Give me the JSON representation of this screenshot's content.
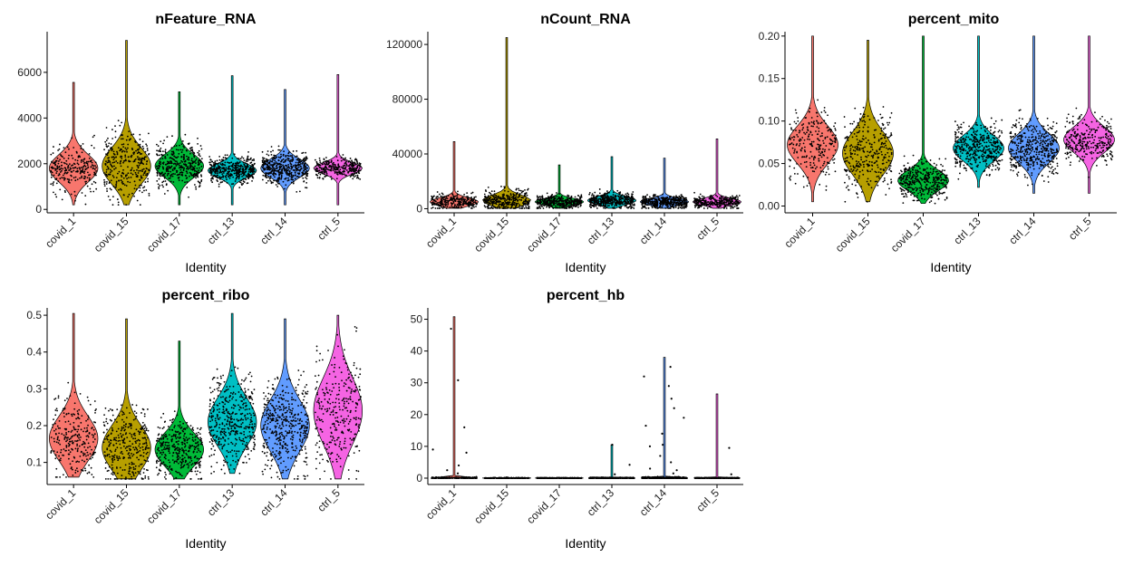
{
  "figure": {
    "identities": [
      "covid_1",
      "covid_15",
      "covid_17",
      "ctrl_13",
      "ctrl_14",
      "ctrl_5"
    ]
  },
  "chart_data": [
    {
      "type": "violin",
      "title": "nFeature_RNA",
      "xlabel": "Identity",
      "ylabel": "",
      "categories": [
        "covid_1",
        "covid_15",
        "covid_17",
        "ctrl_13",
        "ctrl_14",
        "ctrl_5"
      ],
      "colors": [
        "#F8766D",
        "#B79F00",
        "#00BA38",
        "#00BFC4",
        "#619CFF",
        "#F564E3"
      ],
      "ylim": [
        -150,
        7700
      ],
      "yticks": [
        0,
        2000,
        4000,
        6000
      ],
      "ytick_labels": [
        "0",
        "2000",
        "4000",
        "6000"
      ],
      "ranges": [
        [
          200,
          5560
        ],
        [
          200,
          7400
        ],
        [
          200,
          5150
        ],
        [
          200,
          5850
        ],
        [
          200,
          5250
        ],
        [
          200,
          5900
        ]
      ],
      "modes": [
        1800,
        1900,
        1900,
        1700,
        1800,
        1800
      ],
      "spreads": [
        600,
        800,
        500,
        300,
        400,
        250
      ],
      "point_counts": [
        260,
        330,
        380,
        430,
        440,
        300
      ]
    },
    {
      "type": "violin",
      "title": "nCount_RNA",
      "xlabel": "Identity",
      "ylabel": "",
      "categories": [
        "covid_1",
        "covid_15",
        "covid_17",
        "ctrl_13",
        "ctrl_14",
        "ctrl_5"
      ],
      "colors": [
        "#F8766D",
        "#B79F00",
        "#00BA38",
        "#00BFC4",
        "#619CFF",
        "#F564E3"
      ],
      "ylim": [
        -3000,
        128000
      ],
      "yticks": [
        0,
        40000,
        80000,
        120000
      ],
      "ytick_labels": [
        "0",
        "40000",
        "80000",
        "120000"
      ],
      "ranges": [
        [
          300,
          49000
        ],
        [
          300,
          125000
        ],
        [
          300,
          32000
        ],
        [
          300,
          38000
        ],
        [
          300,
          37000
        ],
        [
          300,
          51000
        ]
      ],
      "modes": [
        5000,
        6000,
        5000,
        6000,
        5000,
        5000
      ],
      "spreads": [
        3000,
        4000,
        2500,
        3000,
        2500,
        2500
      ],
      "point_counts": [
        260,
        330,
        380,
        430,
        440,
        300
      ]
    },
    {
      "type": "violin",
      "title": "percent_mito",
      "xlabel": "Identity",
      "ylabel": "",
      "categories": [
        "covid_1",
        "covid_15",
        "covid_17",
        "ctrl_13",
        "ctrl_14",
        "ctrl_5"
      ],
      "colors": [
        "#F8766D",
        "#B79F00",
        "#00BA38",
        "#00BFC4",
        "#619CFF",
        "#F564E3"
      ],
      "ylim": [
        -0.008,
        0.203
      ],
      "yticks": [
        0.0,
        0.05,
        0.1,
        0.15,
        0.2
      ],
      "ytick_labels": [
        "0.00",
        "0.05",
        "0.10",
        "0.15",
        "0.20"
      ],
      "ranges": [
        [
          0.005,
          0.2
        ],
        [
          0.005,
          0.195
        ],
        [
          0.003,
          0.2
        ],
        [
          0.022,
          0.2
        ],
        [
          0.015,
          0.2
        ],
        [
          0.015,
          0.2
        ]
      ],
      "modes": [
        0.072,
        0.062,
        0.03,
        0.068,
        0.068,
        0.078
      ],
      "spreads": [
        0.022,
        0.025,
        0.012,
        0.015,
        0.017,
        0.015
      ],
      "point_counts": [
        260,
        330,
        380,
        430,
        440,
        300
      ]
    },
    {
      "type": "violin",
      "title": "percent_ribo",
      "xlabel": "Identity",
      "ylabel": "",
      "categories": [
        "covid_1",
        "covid_15",
        "covid_17",
        "ctrl_13",
        "ctrl_14",
        "ctrl_5"
      ],
      "colors": [
        "#F8766D",
        "#B79F00",
        "#00BA38",
        "#00BFC4",
        "#619CFF",
        "#F564E3"
      ],
      "ylim": [
        0.04,
        0.515
      ],
      "yticks": [
        0.1,
        0.2,
        0.3,
        0.4,
        0.5
      ],
      "ytick_labels": [
        "0.1",
        "0.2",
        "0.3",
        "0.4",
        "0.5"
      ],
      "ranges": [
        [
          0.06,
          0.505
        ],
        [
          0.055,
          0.49
        ],
        [
          0.055,
          0.43
        ],
        [
          0.07,
          0.505
        ],
        [
          0.055,
          0.49
        ],
        [
          0.055,
          0.5
        ]
      ],
      "modes": [
        0.165,
        0.14,
        0.135,
        0.21,
        0.2,
        0.24
      ],
      "spreads": [
        0.06,
        0.06,
        0.045,
        0.065,
        0.07,
        0.09
      ],
      "point_counts": [
        260,
        330,
        380,
        430,
        440,
        300
      ]
    },
    {
      "type": "violin",
      "title": "percent_hb",
      "xlabel": "Identity",
      "ylabel": "",
      "categories": [
        "covid_1",
        "covid_15",
        "covid_17",
        "ctrl_13",
        "ctrl_14",
        "ctrl_5"
      ],
      "colors": [
        "#F8766D",
        "#B79F00",
        "#00BA38",
        "#00BFC4",
        "#619CFF",
        "#F564E3"
      ],
      "ylim": [
        -2,
        53
      ],
      "yticks": [
        0,
        10,
        20,
        30,
        40,
        50
      ],
      "ytick_labels": [
        "0",
        "10",
        "20",
        "30",
        "40",
        "50"
      ],
      "ranges": [
        [
          0,
          50.8
        ],
        [
          0,
          0.4
        ],
        [
          0,
          0.2
        ],
        [
          0,
          10.5
        ],
        [
          0,
          38
        ],
        [
          0,
          26.5
        ]
      ],
      "modes": [
        0.05,
        0.03,
        0.02,
        0.04,
        0.05,
        0.03
      ],
      "spreads": [
        0.15,
        0.08,
        0.06,
        0.1,
        0.2,
        0.08
      ],
      "point_counts": [
        260,
        330,
        380,
        430,
        440,
        300
      ],
      "outliers": [
        [
          [
            0,
            16
          ],
          [
            0,
            8
          ],
          [
            0,
            9
          ],
          [
            0,
            4
          ],
          [
            0,
            2.5
          ],
          [
            0,
            47
          ],
          [
            0,
            30.8
          ],
          [
            0,
            1.5
          ]
        ],
        [],
        [],
        [
          [
            0,
            4.2
          ],
          [
            0,
            10.5
          ],
          [
            0,
            1.2
          ]
        ],
        [
          [
            0,
            32
          ],
          [
            0,
            25
          ],
          [
            0,
            29
          ],
          [
            0,
            35
          ],
          [
            0,
            16.5
          ],
          [
            0,
            19
          ],
          [
            0,
            10.5
          ],
          [
            0,
            10
          ],
          [
            0,
            3
          ],
          [
            0,
            2.5
          ],
          [
            0,
            1.5
          ],
          [
            0,
            5
          ],
          [
            0,
            7
          ],
          [
            0,
            22
          ],
          [
            0,
            14
          ]
        ],
        [
          [
            0,
            9.5
          ],
          [
            0,
            1.2
          ]
        ]
      ]
    }
  ]
}
